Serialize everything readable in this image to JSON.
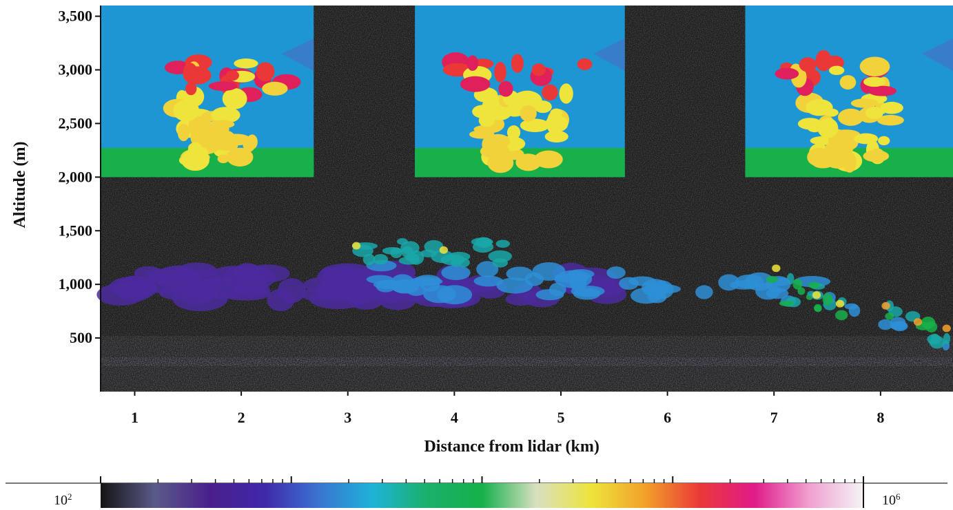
{
  "chart_data": {
    "type": "heatmap",
    "title": "",
    "xlabel": "Distance from lidar (km)",
    "ylabel": "Altitude (m)",
    "xlim": [
      0.68,
      8.68
    ],
    "ylim": [
      0,
      3600
    ],
    "x_ticks": [
      {
        "value": 1,
        "label": "1"
      },
      {
        "value": 2,
        "label": "2"
      },
      {
        "value": 3,
        "label": "3"
      },
      {
        "value": 4,
        "label": "4"
      },
      {
        "value": 5,
        "label": "5"
      },
      {
        "value": 6,
        "label": "6"
      },
      {
        "value": 7,
        "label": "7"
      },
      {
        "value": 8,
        "label": "8"
      }
    ],
    "y_ticks": [
      {
        "value": 500,
        "label": "500"
      },
      {
        "value": 1000,
        "label": "1,000"
      },
      {
        "value": 1500,
        "label": "1,500"
      },
      {
        "value": 2000,
        "label": "2,000"
      },
      {
        "value": 2500,
        "label": "2,500"
      },
      {
        "value": 3000,
        "label": "3,000"
      },
      {
        "value": 3500,
        "label": "3,500"
      }
    ],
    "grid": false,
    "legend": "none",
    "insets": [
      {
        "x_start": 0.68,
        "x_end": 2.68,
        "y_start": 2000,
        "y_end": 3600
      },
      {
        "x_start": 3.63,
        "x_end": 5.6,
        "y_start": 2000,
        "y_end": 3600
      },
      {
        "x_start": 6.73,
        "x_end": 8.68,
        "y_start": 2000,
        "y_end": 3600
      }
    ],
    "colorbar": {
      "scale": "log",
      "min": 100,
      "max": 1000000,
      "min_label_base": "10",
      "min_label_exp": "2",
      "max_label_base": "10",
      "max_label_exp": "6",
      "colors": [
        "#141414",
        "#5a5a8a",
        "#4a1f8c",
        "#3f28a8",
        "#3a74d0",
        "#1eb3d8",
        "#1ab06a",
        "#16b04a",
        "#d8e0c0",
        "#eee43c",
        "#f2a02a",
        "#ea3838",
        "#e01a8a",
        "#f0a0d0",
        "#f4f4f4"
      ]
    },
    "background_color": "#1c1c1c",
    "inset_sky_color": "#1e96d4",
    "inset_ground_color": "#18b04a"
  }
}
